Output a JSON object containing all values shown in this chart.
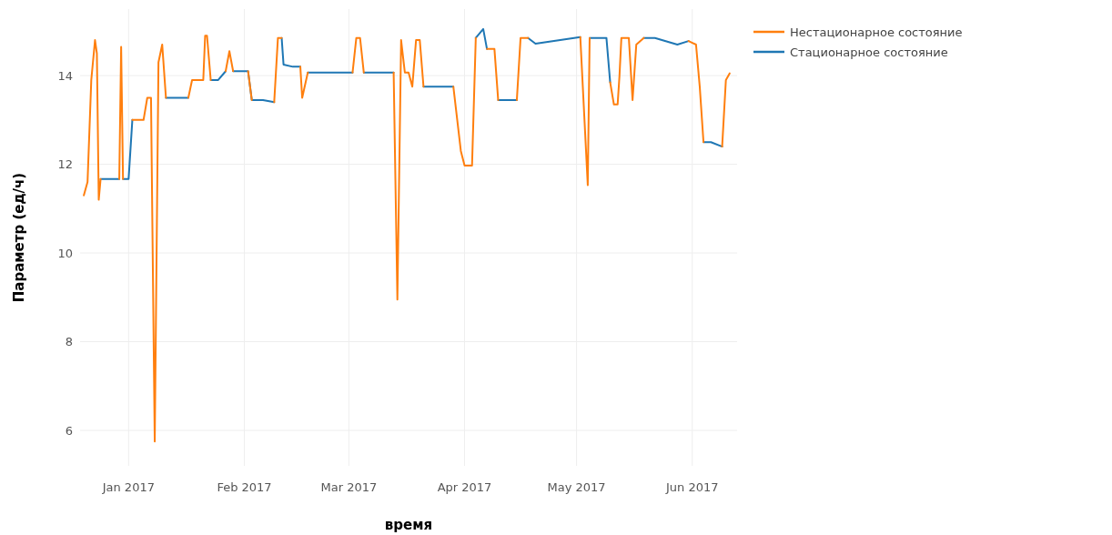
{
  "chart_data": {
    "type": "line",
    "xlabel": "время",
    "ylabel": "Параметр (ед/ч)",
    "x": [
      "2016-12-20",
      "2016-12-21",
      "2016-12-22",
      "2016-12-23",
      "2016-12-23T12:00",
      "2016-12-24",
      "2016-12-24T12:00",
      "2016-12-27",
      "2016-12-29T12:00",
      "2016-12-30",
      "2016-12-30T12:00",
      "2016-12-31",
      "2017-01-01",
      "2017-01-02",
      "2017-01-05",
      "2017-01-06",
      "2017-01-07",
      "2017-01-08",
      "2017-01-09",
      "2017-01-10",
      "2017-01-11",
      "2017-01-14",
      "2017-01-17",
      "2017-01-18",
      "2017-01-21",
      "2017-01-21T12:00",
      "2017-01-22",
      "2017-01-23",
      "2017-01-25",
      "2017-01-27",
      "2017-01-28",
      "2017-01-29",
      "2017-01-31",
      "2017-02-02",
      "2017-02-03",
      "2017-02-06",
      "2017-02-09",
      "2017-02-10",
      "2017-02-11",
      "2017-02-11T12:00",
      "2017-02-14",
      "2017-02-16",
      "2017-02-16T12:00",
      "2017-02-18",
      "2017-02-24",
      "2017-03-02",
      "2017-03-03",
      "2017-03-04",
      "2017-03-05",
      "2017-03-09",
      "2017-03-13",
      "2017-03-14",
      "2017-03-15",
      "2017-03-16",
      "2017-03-17",
      "2017-03-18",
      "2017-03-19",
      "2017-03-20",
      "2017-03-21",
      "2017-03-25",
      "2017-03-29",
      "2017-03-31",
      "2017-04-01",
      "2017-04-03",
      "2017-04-04",
      "2017-04-06",
      "2017-04-07",
      "2017-04-09",
      "2017-04-10",
      "2017-04-12",
      "2017-04-15",
      "2017-04-16",
      "2017-04-18",
      "2017-04-20",
      "2017-05-02",
      "2017-05-04",
      "2017-05-04T12:00",
      "2017-05-07",
      "2017-05-09",
      "2017-05-10",
      "2017-05-11",
      "2017-05-12",
      "2017-05-12T12:00",
      "2017-05-13",
      "2017-05-15",
      "2017-05-16",
      "2017-05-17",
      "2017-05-19",
      "2017-05-22",
      "2017-05-28",
      "2017-05-31",
      "2017-06-02",
      "2017-06-03",
      "2017-06-04",
      "2017-06-06",
      "2017-06-09",
      "2017-06-10",
      "2017-06-11"
    ],
    "series": [
      {
        "name": "Нестационарное состояние",
        "color": "#ff7f0e",
        "values": [
          11.3,
          11.6,
          13.9,
          14.8,
          14.5,
          11.2,
          11.67,
          null,
          11.67,
          14.65,
          11.67,
          null,
          null,
          13.0,
          13.0,
          13.5,
          13.5,
          5.75,
          14.3,
          14.7,
          13.5,
          null,
          13.5,
          13.9,
          13.9,
          14.9,
          14.9,
          13.9,
          null,
          14.1,
          14.55,
          14.1,
          null,
          14.1,
          13.45,
          null,
          13.4,
          14.85,
          14.85,
          null,
          null,
          14.2,
          13.5,
          14.07,
          null,
          14.07,
          14.85,
          14.85,
          14.07,
          null,
          14.07,
          8.95,
          14.8,
          14.07,
          14.07,
          13.75,
          14.8,
          14.8,
          13.75,
          null,
          13.75,
          12.3,
          11.97,
          11.97,
          14.85,
          null,
          14.6,
          14.6,
          13.45,
          null,
          13.45,
          14.85,
          14.85,
          null,
          14.87,
          11.53,
          14.85,
          null,
          null,
          13.85,
          13.35,
          13.35,
          14.0,
          14.85,
          14.85,
          13.45,
          14.7,
          14.85,
          null,
          null,
          14.78,
          14.7,
          13.75,
          12.5,
          null,
          12.4,
          13.9,
          14.05
        ]
      },
      {
        "name": "Стационарное состояние",
        "color": "#1f77b4",
        "values": [
          null,
          null,
          null,
          null,
          null,
          null,
          11.67,
          11.67,
          11.67,
          null,
          11.67,
          11.67,
          11.67,
          13.0,
          null,
          null,
          null,
          null,
          null,
          null,
          13.5,
          13.5,
          13.5,
          null,
          null,
          null,
          null,
          13.9,
          13.9,
          14.1,
          null,
          14.1,
          14.1,
          14.1,
          13.45,
          13.45,
          13.4,
          null,
          14.85,
          14.25,
          14.2,
          14.2,
          null,
          14.07,
          14.07,
          14.07,
          null,
          null,
          14.07,
          14.07,
          14.07,
          null,
          null,
          null,
          null,
          null,
          null,
          null,
          13.75,
          13.75,
          13.75,
          null,
          null,
          null,
          14.85,
          15.05,
          14.6,
          null,
          13.45,
          13.45,
          13.45,
          null,
          14.85,
          14.72,
          14.87,
          null,
          14.85,
          14.85,
          14.85,
          13.85,
          null,
          null,
          null,
          null,
          null,
          null,
          null,
          14.85,
          14.85,
          14.7,
          14.78,
          null,
          null,
          12.5,
          12.5,
          12.4,
          null,
          null
        ]
      }
    ],
    "xlim": [
      "2016-12-19",
      "2017-06-13"
    ],
    "ylim": [
      5.2,
      15.5
    ],
    "xticks": [
      {
        "value": "2017-01-01",
        "label": "Jan 2017"
      },
      {
        "value": "2017-02-01",
        "label": "Feb 2017"
      },
      {
        "value": "2017-03-01",
        "label": "Mar 2017"
      },
      {
        "value": "2017-04-01",
        "label": "Apr 2017"
      },
      {
        "value": "2017-05-01",
        "label": "May 2017"
      },
      {
        "value": "2017-06-01",
        "label": "Jun 2017"
      }
    ],
    "yticks": [
      6,
      8,
      10,
      12,
      14
    ],
    "grid": true,
    "legend": "top right"
  }
}
